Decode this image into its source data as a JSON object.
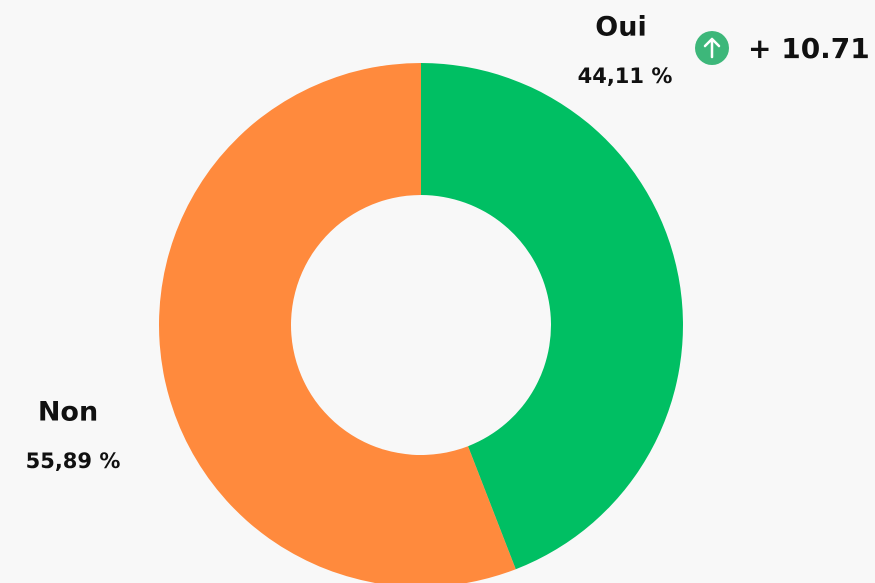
{
  "chart_data": {
    "type": "pie",
    "donut": true,
    "categories": [
      "Oui",
      "Non"
    ],
    "values": [
      44.11,
      55.89
    ],
    "value_labels": [
      "44,11 %",
      "55,89 %"
    ],
    "colors": [
      "#00bf63",
      "#ff8a3d"
    ],
    "annotation": "+ 10.71",
    "annotation_color": "#2e9c5a"
  }
}
